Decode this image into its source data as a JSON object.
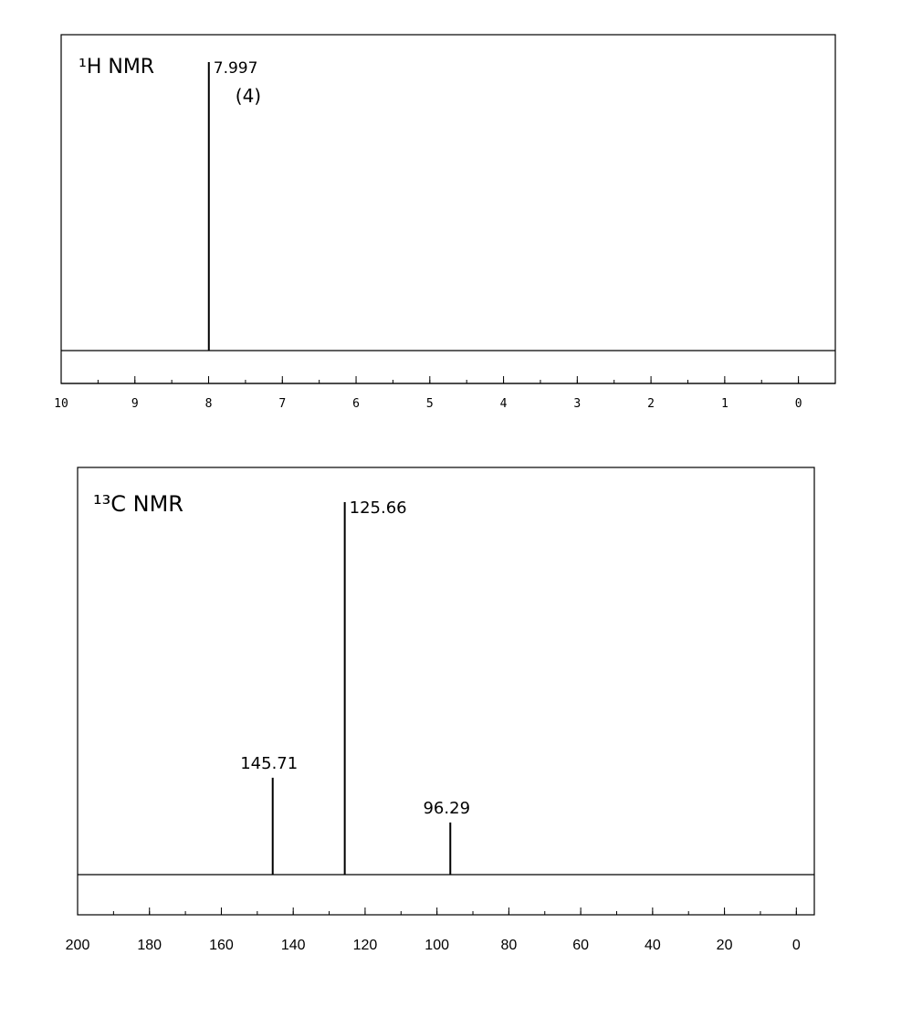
{
  "chart_data": [
    {
      "type": "line",
      "title": "¹H NMR",
      "xlim": [
        10,
        -0.5
      ],
      "x_ticks": [
        10,
        9,
        8,
        7,
        6,
        5,
        4,
        3,
        2,
        1,
        0
      ],
      "x_tick_labels": [
        "10",
        "9",
        "8",
        "7",
        "6",
        "5",
        "4",
        "3",
        "2",
        "1",
        "0"
      ],
      "peaks": [
        {
          "shift": 7.997,
          "relative_intensity": 1.0,
          "label": "7.997",
          "integration": "(4)"
        }
      ],
      "grid": false,
      "annotations": [
        "7.997",
        "(4)"
      ]
    },
    {
      "type": "line",
      "title": "¹³C NMR",
      "xlim": [
        200,
        -5
      ],
      "x_ticks": [
        200,
        180,
        160,
        140,
        120,
        100,
        80,
        60,
        40,
        20,
        0
      ],
      "x_tick_labels": [
        "200",
        "180",
        "160",
        "140",
        "120",
        "100",
        "80",
        "60",
        "40",
        "20",
        "0"
      ],
      "peaks": [
        {
          "shift": 145.71,
          "relative_intensity": 0.26,
          "label": "145.71"
        },
        {
          "shift": 125.66,
          "relative_intensity": 1.0,
          "label": "125.66"
        },
        {
          "shift": 96.29,
          "relative_intensity": 0.14,
          "label": "96.29"
        }
      ],
      "grid": false,
      "annotations": [
        "145.71",
        "125.66",
        "96.29"
      ]
    }
  ]
}
